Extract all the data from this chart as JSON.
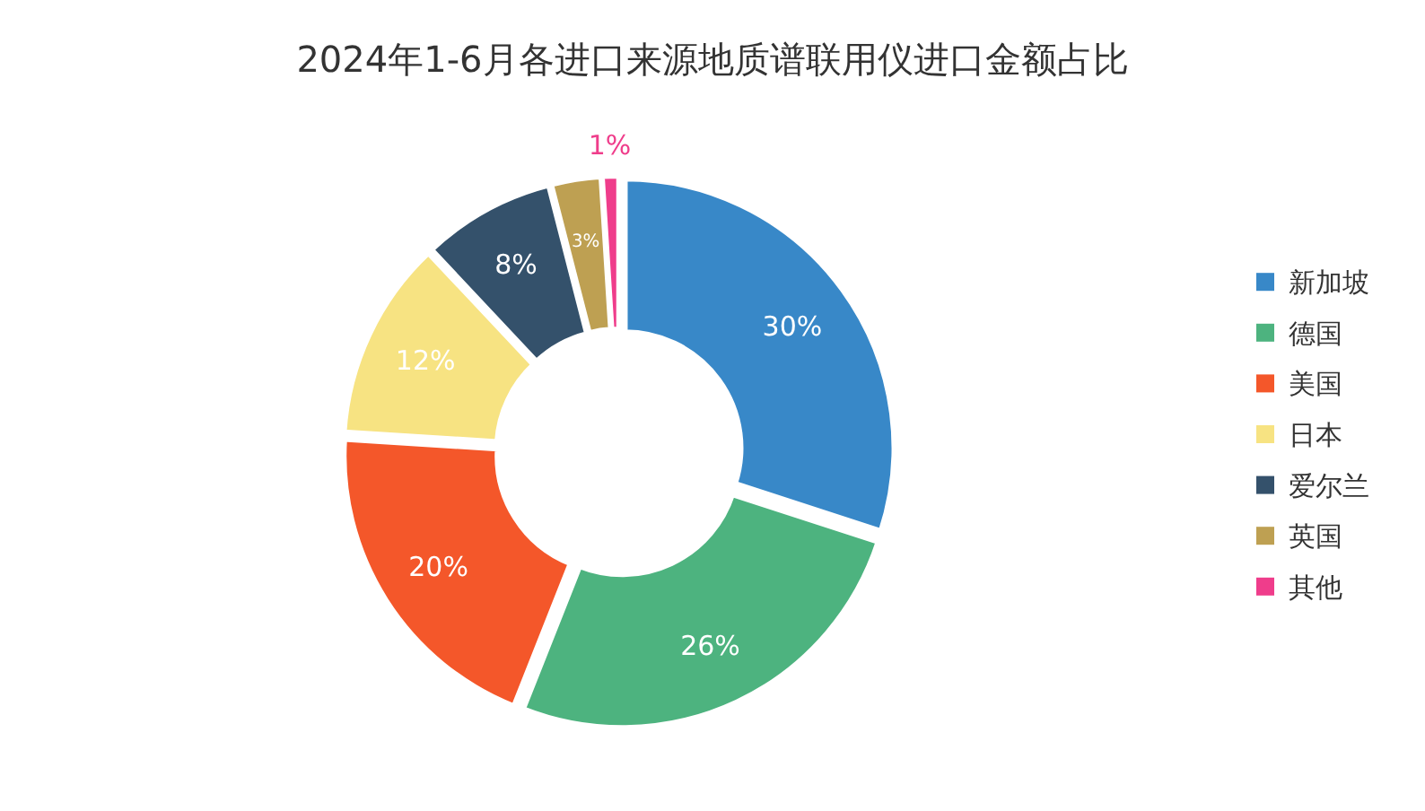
{
  "chart_data": {
    "type": "donut",
    "title": "2024年1-6月各进口来源地质谱联用仪进口金额占比",
    "categories": [
      "新加坡",
      "德国",
      "美国",
      "日本",
      "爱尔兰",
      "英国",
      "其他"
    ],
    "values": [
      30,
      26,
      20,
      12,
      8,
      3,
      1
    ],
    "value_labels": [
      "30%",
      "26%",
      "20%",
      "12%",
      "8%",
      "3%",
      "1%"
    ],
    "colors": [
      "#3888c8",
      "#4db37f",
      "#f4572a",
      "#f7e382",
      "#34516b",
      "#bea052",
      "#ef3d8b"
    ],
    "legend": "right"
  }
}
